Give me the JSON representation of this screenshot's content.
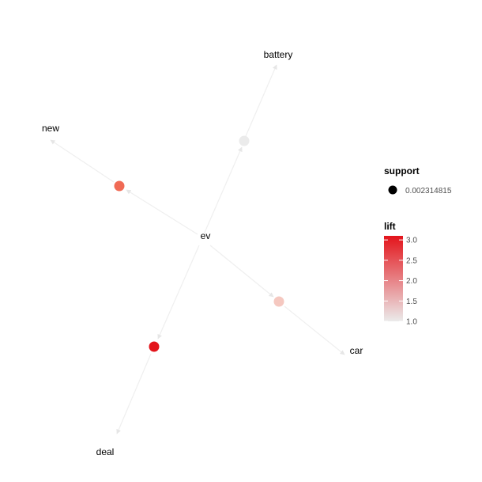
{
  "graph": {
    "center": {
      "id": "ev",
      "label": "ev"
    },
    "items": [
      {
        "id": "battery",
        "label": "battery"
      },
      {
        "id": "new",
        "label": "new"
      },
      {
        "id": "car",
        "label": "car"
      },
      {
        "id": "deal",
        "label": "deal"
      }
    ],
    "rules": [
      {
        "id": "rule-battery",
        "target": "battery",
        "lift": 1.0,
        "color": "#ebebeb"
      },
      {
        "id": "rule-new",
        "target": "new",
        "lift": 2.4,
        "color": "#f06a55"
      },
      {
        "id": "rule-car",
        "target": "car",
        "lift": 1.4,
        "color": "#f5c8c0"
      },
      {
        "id": "rule-deal",
        "target": "deal",
        "lift": 3.1,
        "color": "#e3141b"
      }
    ],
    "edge_color": "#efefef"
  },
  "legend": {
    "support": {
      "title": "support",
      "value": "0.002314815",
      "marker_color": "#000000"
    },
    "lift": {
      "title": "lift",
      "ticks": [
        "3.0",
        "2.5",
        "2.0",
        "1.5",
        "1.0"
      ],
      "range": [
        1.0,
        3.1
      ],
      "color_low": "#ebebeb",
      "color_high": "#e3141b"
    }
  }
}
